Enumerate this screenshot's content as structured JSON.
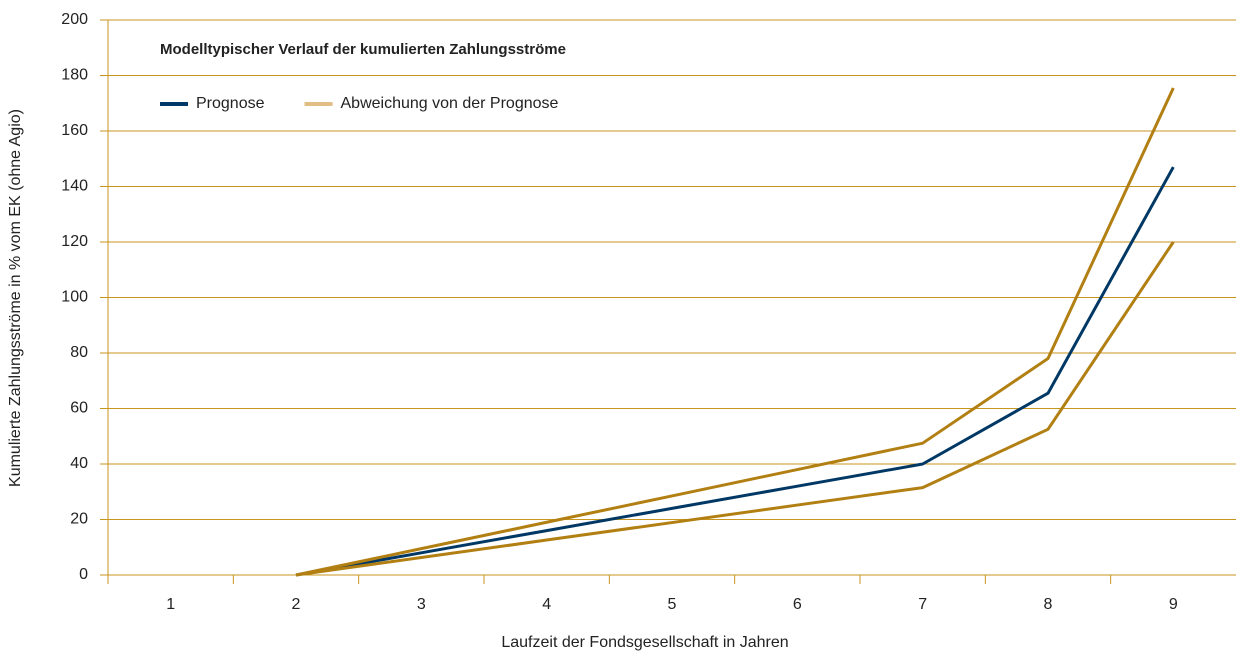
{
  "chart_data": {
    "type": "line",
    "title": "Modelltypischer Verlauf der kumulierten Zahlungsströme",
    "x_label": "Laufzeit der Fondsgesellschaft in Jahren",
    "y_label": "Kumulierte Zahlungsströme in % vom EK (ohne Agio)",
    "categories": [
      "1",
      "2",
      "3",
      "4",
      "5",
      "6",
      "7",
      "8",
      "9"
    ],
    "series": [
      {
        "name": "Prognose",
        "color": "#003865",
        "values": [
          null,
          0,
          8,
          16,
          24,
          32,
          40,
          65.5,
          147
        ]
      },
      {
        "name": "Abweichung von der Prognose",
        "color": "#b27f12",
        "legend_color": "#e2bd86",
        "values": [
          null,
          0,
          9.5,
          19,
          28.5,
          38,
          47.5,
          78,
          175.5
        ],
        "lower_values": [
          null,
          0,
          6.3,
          12.6,
          18.9,
          25.2,
          31.5,
          52.5,
          120
        ]
      }
    ],
    "ylim": [
      0,
      200
    ],
    "yticks": [
      0,
      20,
      40,
      60,
      80,
      100,
      120,
      140,
      160,
      180,
      200
    ],
    "grid": true,
    "grid_color": "#c8961e"
  }
}
